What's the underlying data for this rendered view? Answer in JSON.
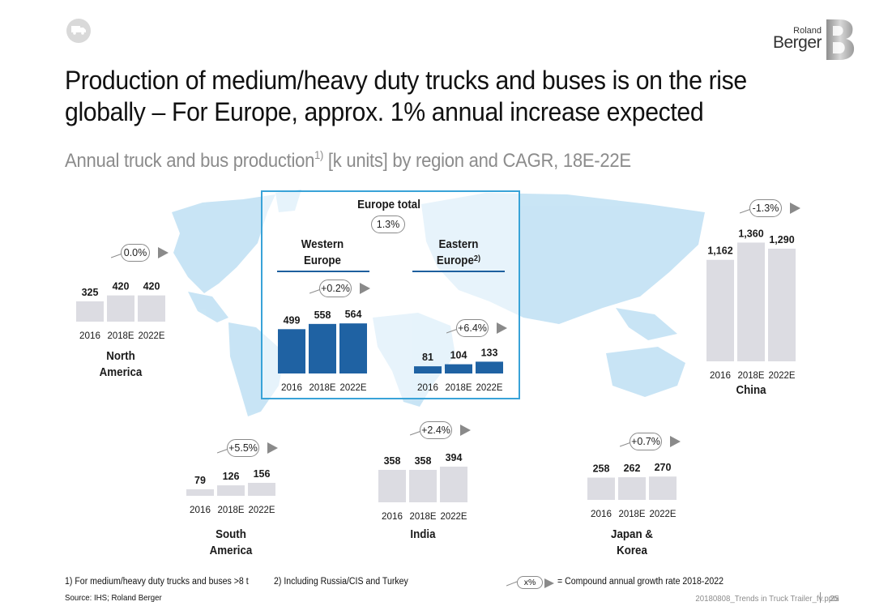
{
  "header": {
    "title_line1": "Production of medium/heavy duty trucks and buses is on the rise",
    "title_line2": "globally – For Europe, approx. 1% annual increase expected",
    "subtitle_main": "Annual truck and bus production",
    "subtitle_sup": "1)",
    "subtitle_rest": " [k units] by region and CAGR, 18E-22E",
    "logo_top": "Roland",
    "logo_bottom": "Berger"
  },
  "europe_total": {
    "label": "Europe total",
    "cagr": "1.3%"
  },
  "chart_data": [
    {
      "type": "bar",
      "id": "north-america",
      "title": "North\nAmerica",
      "title_lines": [
        "North",
        "America"
      ],
      "categories": [
        "2016",
        "2018E",
        "2022E"
      ],
      "values": [
        325,
        420,
        420
      ],
      "value_labels": [
        "325",
        "420",
        "420"
      ],
      "cagr": "0.0%",
      "color": "#dcdce2"
    },
    {
      "type": "bar",
      "id": "western-europe",
      "title": "Western Europe",
      "title_lines": [
        "Western",
        "Europe"
      ],
      "categories": [
        "2016",
        "2018E",
        "2022E"
      ],
      "values": [
        499,
        558,
        564
      ],
      "value_labels": [
        "499",
        "558",
        "564"
      ],
      "cagr": "+0.2%",
      "color": "#1f62a3"
    },
    {
      "type": "bar",
      "id": "eastern-europe",
      "title": "Eastern Europe",
      "title_lines": [
        "Eastern",
        "Europe"
      ],
      "title_sup": "2)",
      "categories": [
        "2016",
        "2018E",
        "2022E"
      ],
      "values": [
        81,
        104,
        133
      ],
      "value_labels": [
        "81",
        "104",
        "133"
      ],
      "cagr": "+6.4%",
      "color": "#1f62a3"
    },
    {
      "type": "bar",
      "id": "china",
      "title": "China",
      "title_lines": [
        "China"
      ],
      "categories": [
        "2016",
        "2018E",
        "2022E"
      ],
      "values": [
        1162,
        1360,
        1290
      ],
      "value_labels": [
        "1,162",
        "1,360",
        "1,290"
      ],
      "cagr": "-1.3%",
      "color": "#dcdce2"
    },
    {
      "type": "bar",
      "id": "south-america",
      "title": "South America",
      "title_lines": [
        "South",
        "America"
      ],
      "categories": [
        "2016",
        "2018E",
        "2022E"
      ],
      "values": [
        79,
        126,
        156
      ],
      "value_labels": [
        "79",
        "126",
        "156"
      ],
      "cagr": "+5.5%",
      "color": "#dcdce2"
    },
    {
      "type": "bar",
      "id": "india",
      "title": "India",
      "title_lines": [
        "India"
      ],
      "categories": [
        "2016",
        "2018E",
        "2022E"
      ],
      "values": [
        358,
        358,
        394
      ],
      "value_labels": [
        "358",
        "358",
        "394"
      ],
      "cagr": "+2.4%",
      "color": "#dcdce2"
    },
    {
      "type": "bar",
      "id": "japan-korea",
      "title": "Japan & Korea",
      "title_lines": [
        "Japan &",
        "Korea"
      ],
      "categories": [
        "2016",
        "2018E",
        "2022E"
      ],
      "values": [
        258,
        262,
        270
      ],
      "value_labels": [
        "258",
        "262",
        "270"
      ],
      "cagr": "+0.7%",
      "color": "#dcdce2"
    }
  ],
  "footnotes": {
    "note1": "1) For medium/heavy duty trucks and buses >8 t",
    "note2": "2) Including Russia/CIS and Turkey",
    "legend_pill": "x%",
    "legend_text": "= Compound annual growth rate 2018-2022",
    "source": "Source: IHS; Roland Berger",
    "file": "20180808_Trends in Truck Trailer_fv.pptx",
    "page": "25"
  },
  "colors": {
    "map": "#bfe0f3",
    "europe_border": "#39a3d8",
    "bar_europe": "#1f62a3",
    "bar_other": "#dcdce2"
  }
}
